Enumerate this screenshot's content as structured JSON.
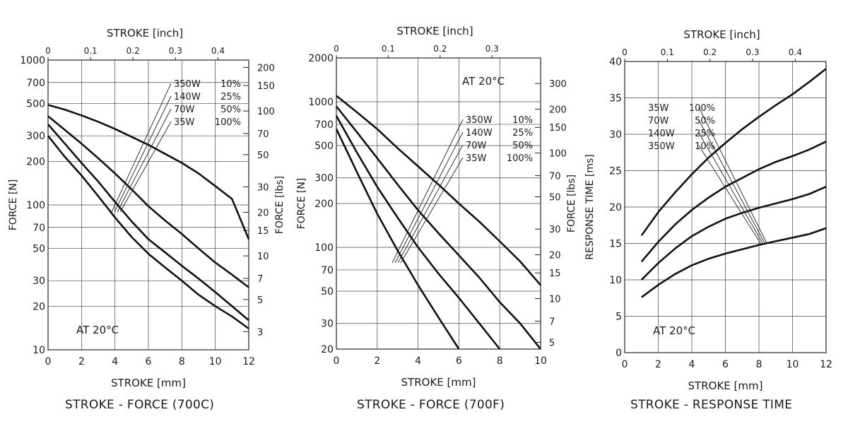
{
  "chart_data": [
    {
      "type": "line",
      "title": "STROKE - FORCE (700C)",
      "xlabel": "STROKE [mm]",
      "x2label": "STROKE [inch]",
      "ylabel": "FORCE [N]",
      "y2label": "FORCE [lbs]",
      "xlim": [
        0,
        12
      ],
      "xticks": [
        0,
        2,
        4,
        6,
        8,
        10,
        12
      ],
      "x2lim": [
        0,
        0.4724
      ],
      "x2ticks": [
        "0",
        "0.1",
        "0.2",
        "0.3",
        "0.4"
      ],
      "yscale": "log",
      "ylim": [
        10,
        1000
      ],
      "yticks": [
        10,
        20,
        30,
        50,
        70,
        100,
        200,
        300,
        500,
        700,
        1000
      ],
      "y2ticks": [
        "3",
        "5",
        "7",
        "10",
        "15",
        "20",
        "30",
        "50",
        "70",
        "100",
        "150",
        "200"
      ],
      "annotation": "AT 20°C",
      "legend": [
        "350W 10%",
        "140W 25%",
        "70W 50%",
        "35W 100%"
      ],
      "grid": true,
      "series": [
        {
          "name": "350W 10%",
          "x": [
            0,
            1,
            2,
            3,
            4,
            5,
            6,
            7,
            8,
            9,
            10,
            11,
            12
          ],
          "y": [
            490,
            455,
            415,
            375,
            335,
            295,
            260,
            225,
            195,
            165,
            135,
            110,
            58
          ]
        },
        {
          "name": "140W 25%",
          "x": [
            0,
            1,
            2,
            3,
            4,
            5,
            6,
            7,
            8,
            9,
            10,
            11,
            12
          ],
          "y": [
            410,
            330,
            265,
            210,
            165,
            128,
            98,
            78,
            63,
            50,
            40,
            33,
            27
          ]
        },
        {
          "name": "70W 50%",
          "x": [
            0,
            1,
            2,
            3,
            4,
            5,
            6,
            7,
            8,
            9,
            10,
            11,
            12
          ],
          "y": [
            360,
            265,
            195,
            145,
            105,
            77,
            58,
            47,
            38,
            31,
            25,
            20,
            16
          ]
        },
        {
          "name": "35W 100%",
          "x": [
            0,
            1,
            2,
            3,
            4,
            5,
            6,
            7,
            8,
            9,
            10,
            11,
            12
          ],
          "y": [
            300,
            215,
            160,
            115,
            82,
            60,
            46,
            37,
            30,
            24,
            20,
            17,
            14
          ]
        }
      ]
    },
    {
      "type": "line",
      "title": "STROKE - FORCE (700F)",
      "xlabel": "STROKE [mm]",
      "x2label": "STROKE [inch]",
      "ylabel": "FORCE [N]",
      "y2label": "FORCE [lbs]",
      "xlim": [
        0,
        10
      ],
      "xticks": [
        0,
        2,
        4,
        6,
        8,
        10
      ],
      "x2lim": [
        0,
        0.3937
      ],
      "x2ticks": [
        "0",
        "0.1",
        "0.2",
        "0.3"
      ],
      "yscale": "log",
      "ylim": [
        20,
        2000
      ],
      "yticks": [
        20,
        30,
        50,
        70,
        100,
        200,
        300,
        500,
        700,
        1000,
        2000
      ],
      "y2ticks": [
        "5",
        "7",
        "10",
        "15",
        "20",
        "30",
        "50",
        "70",
        "100",
        "150",
        "200",
        "300"
      ],
      "annotation": "AT 20°C",
      "legend": [
        "350W 10%",
        "140W 25%",
        "70W 50%",
        "35W 100%"
      ],
      "grid": true,
      "series": [
        {
          "name": "350W 10%",
          "x": [
            0,
            1,
            2,
            3,
            4,
            5,
            6,
            7,
            8,
            9,
            10
          ],
          "y": [
            1100,
            850,
            650,
            480,
            360,
            270,
            200,
            150,
            110,
            80,
            55
          ]
        },
        {
          "name": "140W 25%",
          "x": [
            0,
            1,
            2,
            3,
            4,
            5,
            6,
            7,
            8,
            9,
            10
          ],
          "y": [
            930,
            620,
            410,
            270,
            180,
            125,
            88,
            62,
            42,
            30,
            20
          ]
        },
        {
          "name": "70W 50%",
          "x": [
            0,
            1,
            2,
            3,
            4,
            5,
            6,
            7,
            8
          ],
          "y": [
            800,
            450,
            260,
            160,
            100,
            66,
            45,
            30,
            20
          ]
        },
        {
          "name": "35W 100%",
          "x": [
            0,
            1,
            2,
            3,
            4,
            5,
            6
          ],
          "y": [
            650,
            330,
            170,
            95,
            55,
            33,
            20
          ]
        }
      ]
    },
    {
      "type": "line",
      "title": "STROKE - RESPONSE TIME",
      "xlabel": "STROKE [mm]",
      "x2label": "STROKE [inch]",
      "ylabel": "RESPONSE TIME [ms]",
      "xlim": [
        0,
        12
      ],
      "xticks": [
        0,
        2,
        4,
        6,
        8,
        10,
        12
      ],
      "x2lim": [
        0,
        0.4724
      ],
      "x2ticks": [
        "0",
        "0.1",
        "0.2",
        "0.3",
        "0.4"
      ],
      "yscale": "linear",
      "ylim": [
        0,
        40
      ],
      "yticks": [
        0,
        5,
        10,
        15,
        20,
        25,
        30,
        35,
        40
      ],
      "annotation": "AT 20°C",
      "legend": [
        "35W 100%",
        "70W 50%",
        "140W 25%",
        "350W 10%"
      ],
      "grid": true,
      "series": [
        {
          "name": "35W 100%",
          "x": [
            1,
            2,
            3,
            4,
            5,
            6,
            7,
            8,
            9,
            10,
            11,
            12
          ],
          "y": [
            16.1,
            19.3,
            22.0,
            24.5,
            26.8,
            28.8,
            30.7,
            32.4,
            34.0,
            35.5,
            37.2,
            39.0
          ]
        },
        {
          "name": "70W 50%",
          "x": [
            1,
            2,
            3,
            4,
            5,
            6,
            7,
            8,
            9,
            10,
            11,
            12
          ],
          "y": [
            12.5,
            15.2,
            17.6,
            19.6,
            21.3,
            22.8,
            24.0,
            25.2,
            26.2,
            27.0,
            27.9,
            29.0
          ]
        },
        {
          "name": "140W 25%",
          "x": [
            1,
            2,
            3,
            4,
            5,
            6,
            7,
            8,
            9,
            10,
            11,
            12
          ],
          "y": [
            10.0,
            12.3,
            14.3,
            16.0,
            17.3,
            18.4,
            19.2,
            19.9,
            20.5,
            21.1,
            21.8,
            22.8
          ]
        },
        {
          "name": "350W 10%",
          "x": [
            1,
            2,
            3,
            4,
            5,
            6,
            7,
            8,
            9,
            10,
            11,
            12
          ],
          "y": [
            7.6,
            9.3,
            10.8,
            12.0,
            12.9,
            13.6,
            14.2,
            14.8,
            15.3,
            15.8,
            16.3,
            17.1
          ]
        }
      ]
    }
  ]
}
